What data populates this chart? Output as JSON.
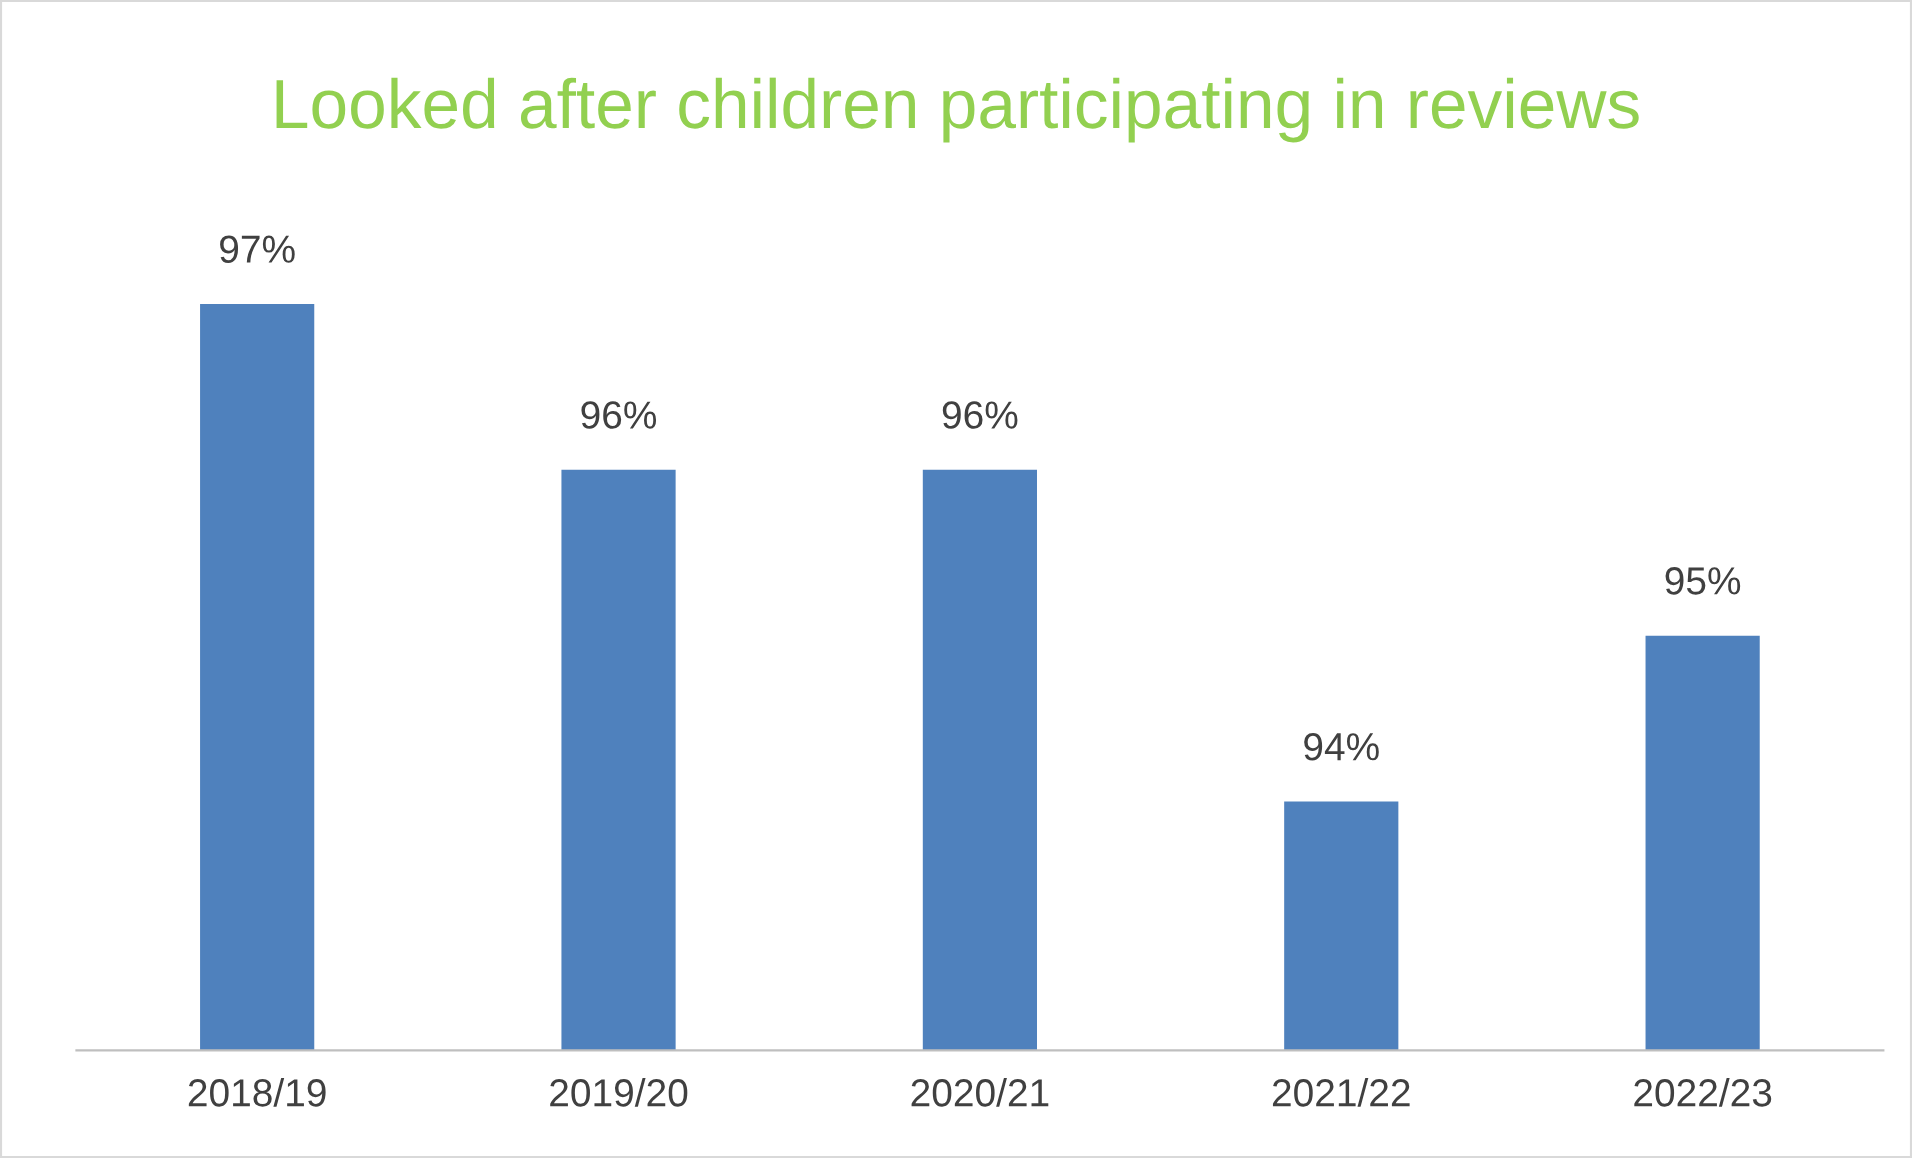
{
  "chart_data": {
    "type": "bar",
    "title": "Looked after children participating in reviews",
    "categories": [
      "2018/19",
      "2019/20",
      "2020/21",
      "2021/22",
      "2022/23"
    ],
    "values": [
      97,
      96,
      96,
      94,
      95
    ],
    "value_labels": [
      "97%",
      "96%",
      "96%",
      "94%",
      "95%"
    ],
    "color": "#4f81bd",
    "ylim": [
      92.5,
      97
    ],
    "tick_labels": "x",
    "grid": false,
    "legend": false
  }
}
